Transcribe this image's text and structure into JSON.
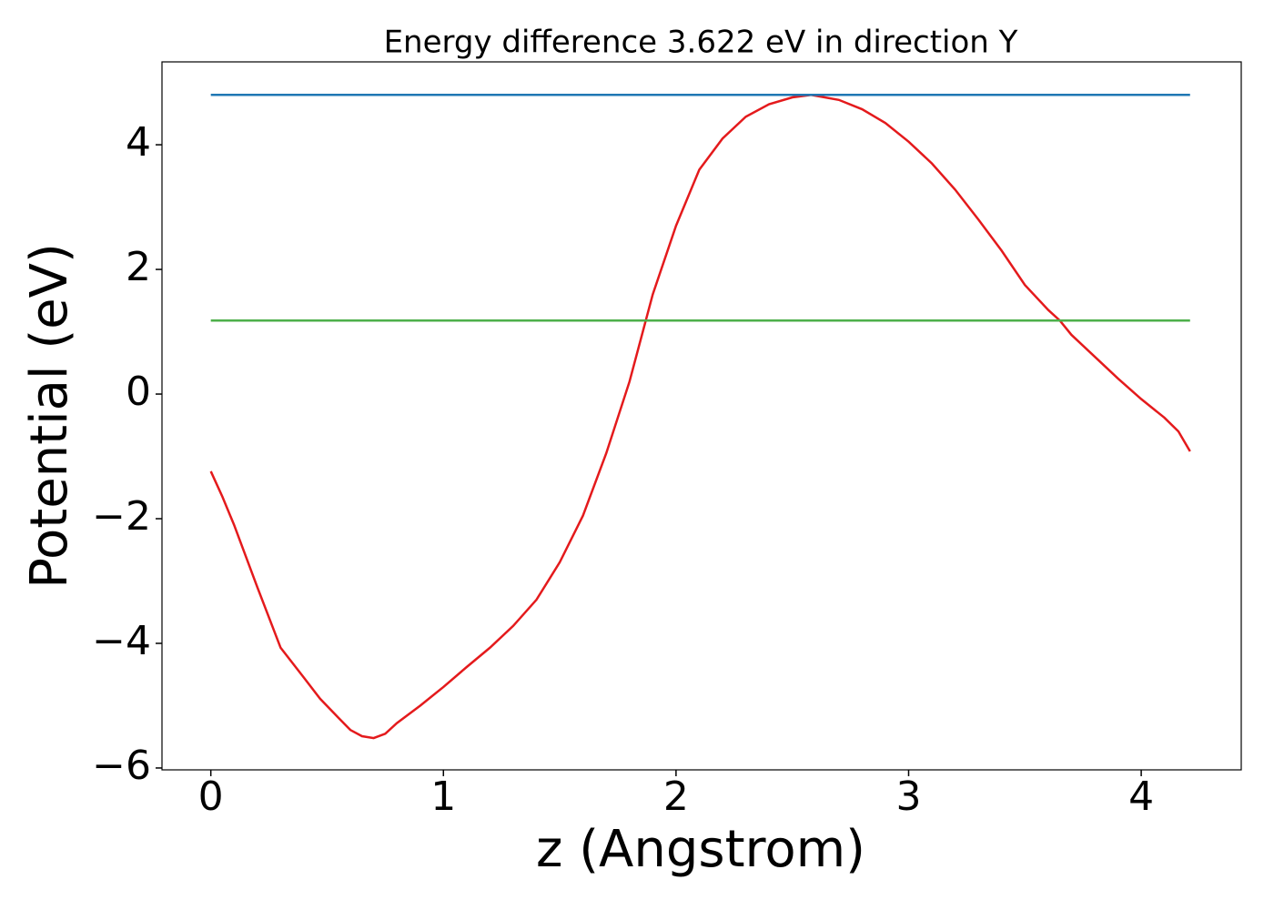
{
  "chart_data": {
    "type": "line",
    "title": "Energy difference 3.622 eV in direction Y",
    "x_label": "z (Angstrom)",
    "y_label": "Potential (eV)",
    "xlim": [
      -0.21,
      4.43
    ],
    "ylim": [
      -6.03,
      5.33
    ],
    "xticks": [
      0,
      1,
      2,
      3,
      4
    ],
    "yticks": [
      {
        "value": -6,
        "label": "−6"
      },
      {
        "value": -4,
        "label": "−4"
      },
      {
        "value": -2,
        "label": "−2"
      },
      0,
      2,
      4
    ],
    "series": [
      {
        "color": "#e41a1c",
        "x": [
          0,
          0.05,
          0.1,
          0.2,
          0.3,
          0.4,
          0.47,
          0.55,
          0.6,
          0.65,
          0.7,
          0.75,
          0.8,
          0.9,
          1.0,
          1.1,
          1.2,
          1.3,
          1.4,
          1.5,
          1.6,
          1.7,
          1.8,
          1.87,
          1.9,
          2.0,
          2.1,
          2.2,
          2.3,
          2.4,
          2.5,
          2.58,
          2.7,
          2.8,
          2.9,
          3.0,
          3.1,
          3.2,
          3.3,
          3.4,
          3.5,
          3.6,
          3.65,
          3.7,
          3.8,
          3.9,
          4.0,
          4.1,
          4.16,
          4.21
        ],
        "values": [
          -1.24,
          -1.65,
          -2.1,
          -3.1,
          -4.07,
          -4.55,
          -4.89,
          -5.2,
          -5.39,
          -5.49,
          -5.52,
          -5.45,
          -5.28,
          -5.0,
          -4.7,
          -4.38,
          -4.07,
          -3.72,
          -3.3,
          -2.7,
          -1.95,
          -0.95,
          0.2,
          1.18,
          1.6,
          2.7,
          3.6,
          4.1,
          4.45,
          4.65,
          4.76,
          4.8,
          4.72,
          4.57,
          4.35,
          4.05,
          3.7,
          3.28,
          2.8,
          2.3,
          1.75,
          1.35,
          1.18,
          0.95,
          0.6,
          0.25,
          -0.08,
          -0.38,
          -0.6,
          -0.92
        ]
      },
      {
        "color": "#1f77b4",
        "x": [
          0,
          4.21
        ],
        "values": [
          4.8,
          4.8
        ]
      },
      {
        "color": "#4daf4a",
        "x": [
          0,
          4.21
        ],
        "values": [
          1.18,
          1.18
        ]
      }
    ]
  }
}
